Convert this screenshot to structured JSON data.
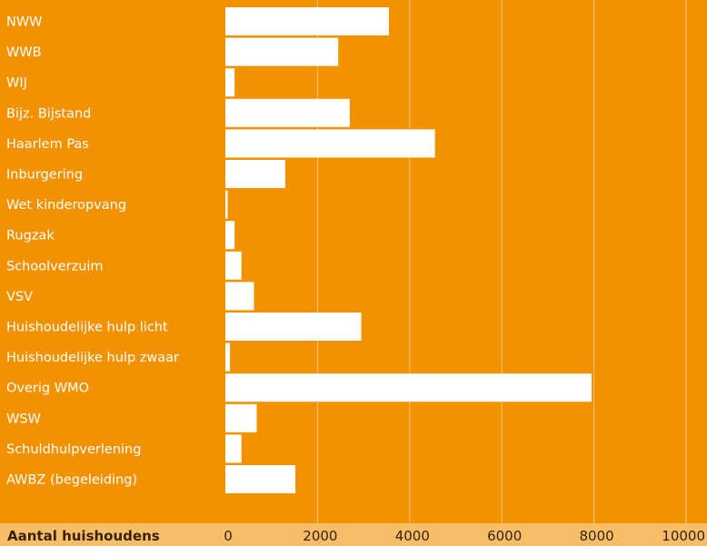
{
  "colors": {
    "background": "#F29200",
    "footer_band": "#F7BE6A",
    "bar": "#FFFFFF",
    "gridline": "#F7C27A",
    "label_text": "#FFFFFF",
    "footer_text": "#3A2200"
  },
  "chart_data": {
    "type": "bar",
    "orientation": "horizontal",
    "categories": [
      "NWW",
      "WWB",
      "WIJ",
      "Bijz. Bijstand",
      "Haarlem Pas",
      "Inburgering",
      "Wet kinderopvang",
      "Rugzak",
      "Schoolverzuim",
      "VSV",
      "Huishoudelijke hulp licht",
      "Huishoudelijke hulp zwaar",
      "Overig WMO",
      "WSW",
      "Schuldhulpverlening",
      "AWBZ (begeleiding)"
    ],
    "values": [
      3550,
      2450,
      200,
      2700,
      4550,
      1300,
      50,
      200,
      350,
      620,
      2950,
      100,
      7950,
      680,
      350,
      1520
    ],
    "xlabel": "Aantal huishoudens",
    "xlim": [
      0,
      10000
    ],
    "x_ticks": [
      "0",
      "2000",
      "4000",
      "6000",
      "8000",
      "10000"
    ],
    "grid": true
  }
}
